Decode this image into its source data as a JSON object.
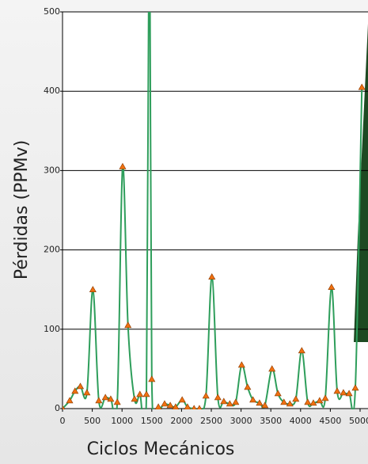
{
  "chart_data": {
    "type": "line",
    "x_label": "Ciclos Mecánicos",
    "y_label": "Pérdidas (PPMv)",
    "x": [
      0,
      120,
      210,
      300,
      410,
      510,
      610,
      720,
      810,
      920,
      1010,
      1100,
      1210,
      1300,
      1410,
      1460,
      1500,
      1610,
      1715,
      1810,
      1900,
      2010,
      2100,
      2210,
      2300,
      2410,
      2510,
      2610,
      2710,
      2810,
      2910,
      3010,
      3110,
      3200,
      3310,
      3400,
      3520,
      3620,
      3720,
      3820,
      3920,
      4020,
      4120,
      4215,
      4320,
      4415,
      4520,
      4615,
      4720,
      4815,
      4920,
      5030
    ],
    "series": [
      {
        "name": "Pérdidas",
        "color": "#2e9e5b",
        "marker_color": "#f07010",
        "values": [
          0,
          10,
          22,
          28,
          20,
          150,
          10,
          14,
          12,
          8,
          305,
          105,
          12,
          18,
          18,
          700,
          37,
          2,
          6,
          4,
          2,
          11,
          2,
          0,
          0,
          16,
          166,
          14,
          9,
          6,
          8,
          55,
          27,
          11,
          7,
          4,
          50,
          19,
          8,
          6,
          12,
          73,
          8,
          7,
          10,
          13,
          153,
          22,
          20,
          19,
          26,
          405
        ]
      }
    ],
    "xlim": [
      0,
      5000
    ],
    "ylim": [
      0,
      500
    ],
    "xticks": [
      0,
      500,
      1000,
      1500,
      2000,
      2500,
      3000,
      3500,
      4000,
      4500,
      5000
    ],
    "yticks": [
      0,
      100,
      200,
      300,
      400,
      500
    ],
    "grid": true
  }
}
